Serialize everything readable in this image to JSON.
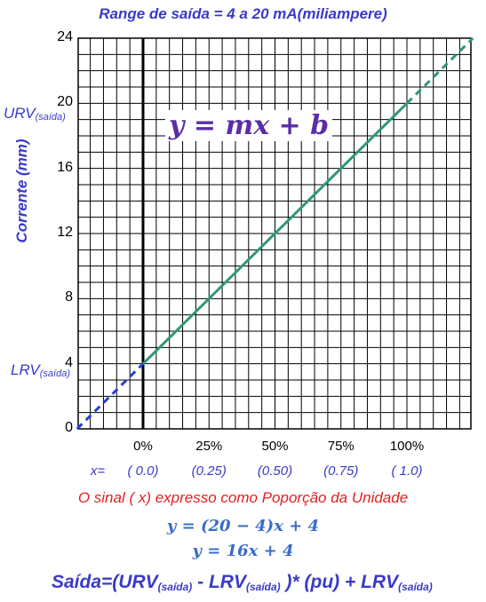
{
  "chart_data": {
    "type": "line",
    "title": "Range de saída = 4 a 20 mA(miliampere)",
    "ylabel": "Corrente (mm)",
    "ylim": [
      0,
      24
    ],
    "xlim": [
      -0.25,
      1.25
    ],
    "grid": true,
    "yticks": [
      "0",
      "4",
      "8",
      "12",
      "16",
      "20",
      "24"
    ],
    "xticks": [
      "0%",
      "25%",
      "50%",
      "75%",
      "100%"
    ],
    "x_values_labels": [
      "x=",
      "( 0.0)",
      "(0.25)",
      "(0.50)",
      "(0.75)",
      "( 1.0)"
    ],
    "series": [
      {
        "x": [
          0,
          1
        ],
        "y": [
          4,
          20
        ],
        "color": "#2e9a6e",
        "style": "solid"
      }
    ],
    "extension_below": {
      "x": [
        -0.25,
        0
      ],
      "y": [
        0,
        4
      ],
      "color": "#2a3fcf",
      "style": "dashed"
    },
    "extension_above": {
      "x": [
        1,
        1.25
      ],
      "y": [
        20,
        24
      ],
      "color": "#2e9a6e",
      "style": "dashed"
    },
    "annotations": {
      "urv": "URV",
      "urv_sub": "(saída)",
      "lrv": "LRV",
      "lrv_sub": "(saída)",
      "equation": "y = mx + b"
    },
    "colors": {
      "grid": "#000000",
      "axis": "#000000",
      "line": "#2e9a6e",
      "dash_low": "#2a3fcf"
    }
  },
  "signal_text": "O  sinal  ( x)   expresso como Poporção da Unidade",
  "formula1": "y = (20 − 4)x + 4",
  "formula2": "y = 16x + 4",
  "bottom": {
    "part1": "Saída=(URV",
    "sub1": "(saída)",
    "part2": " - LRV",
    "sub2": "(saída)",
    "part3": " )* (pu) + LRV",
    "sub3": "(saída)"
  }
}
